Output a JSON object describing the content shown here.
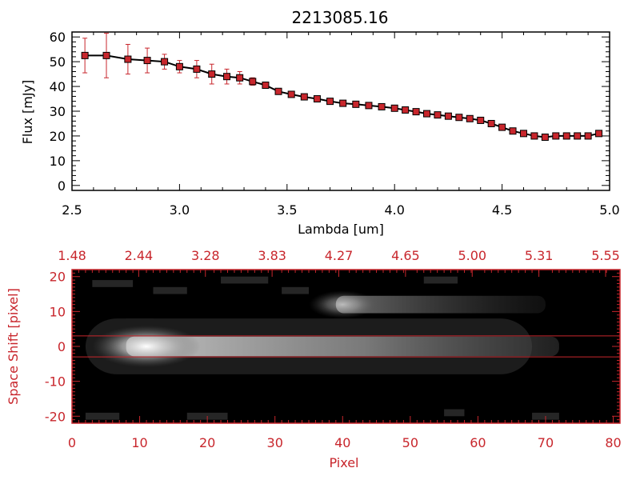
{
  "chart_data": [
    {
      "type": "line",
      "title": "2213085.16",
      "xlabel": "Lambda [um]",
      "ylabel": "Flux [mJy]",
      "xlim": [
        2.5,
        5.0
      ],
      "ylim": [
        -2,
        62
      ],
      "xticks": [
        "2.5",
        "3.0",
        "3.5",
        "4.0",
        "4.5",
        "5.0"
      ],
      "yticks": [
        "0",
        "10",
        "20",
        "30",
        "40",
        "50",
        "60"
      ],
      "colors": {
        "line": "#000000",
        "marker": "#c8262c",
        "error": "#c8262c"
      },
      "series": [
        {
          "name": "flux",
          "x": [
            2.56,
            2.66,
            2.76,
            2.85,
            2.93,
            3.0,
            3.08,
            3.15,
            3.22,
            3.28,
            3.34,
            3.4,
            3.46,
            3.52,
            3.58,
            3.64,
            3.7,
            3.76,
            3.82,
            3.88,
            3.94,
            4.0,
            4.05,
            4.1,
            4.15,
            4.2,
            4.25,
            4.3,
            4.35,
            4.4,
            4.45,
            4.5,
            4.55,
            4.6,
            4.65,
            4.7,
            4.75,
            4.8,
            4.85,
            4.9,
            4.95
          ],
          "y": [
            52.5,
            52.5,
            51.0,
            50.5,
            50.0,
            48.0,
            47.0,
            45.0,
            44.0,
            43.5,
            42.0,
            40.5,
            38.0,
            36.8,
            35.8,
            35.0,
            34.0,
            33.2,
            32.8,
            32.3,
            31.8,
            31.2,
            30.5,
            29.8,
            29.0,
            28.5,
            28.0,
            27.5,
            27.0,
            26.3,
            25.0,
            23.5,
            22.0,
            21.0,
            20.0,
            19.5,
            20.0,
            20.0,
            20.0,
            20.0,
            21.0
          ],
          "err": [
            7.0,
            9.0,
            6.0,
            5.0,
            3.0,
            2.5,
            3.5,
            4.0,
            3.0,
            2.5,
            1.5,
            1.0,
            0.8,
            0.8,
            0.8,
            0.8,
            0.8,
            0.8,
            0.8,
            0.8,
            0.8,
            0.8,
            0.8,
            0.8,
            0.8,
            0.8,
            0.8,
            0.8,
            0.8,
            0.8,
            0.8,
            0.8,
            0.8,
            0.8,
            0.8,
            0.8,
            0.8,
            0.8,
            0.8,
            0.8,
            1.0
          ]
        }
      ]
    },
    {
      "type": "heatmap",
      "xlabel": "Pixel",
      "ylabel": "Space Shift [pixel]",
      "xlim": [
        0,
        81
      ],
      "ylim": [
        -22,
        22
      ],
      "xticks": [
        "0",
        "10",
        "20",
        "30",
        "40",
        "50",
        "60",
        "70",
        "80"
      ],
      "yticks": [
        "20",
        "10",
        "0",
        "-10",
        "-20"
      ],
      "top_ticks": [
        "1.48",
        "2.44",
        "3.28",
        "3.83",
        "4.27",
        "4.65",
        "5.00",
        "5.31",
        "5.55"
      ],
      "extraction_lines": [
        3,
        -3
      ],
      "colors": {
        "axis": "#c8262c",
        "background": "#000000"
      },
      "blobs": [
        {
          "x": 11,
          "y": 0,
          "intensity": 1.0
        },
        {
          "x": 40,
          "y": 12,
          "intensity": 0.55
        }
      ]
    }
  ]
}
